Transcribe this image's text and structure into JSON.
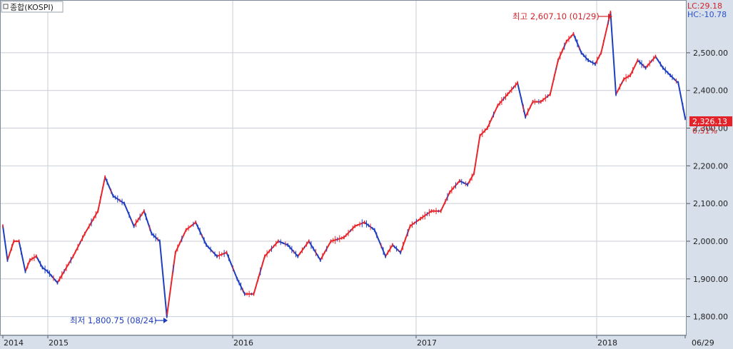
{
  "window": {
    "series_label": "종합(KOSPI)",
    "lc_label": "LC:29.18",
    "hc_label": "HC:-10.78"
  },
  "colors": {
    "up": "#e8262c",
    "down": "#1f3fbf",
    "axis_bg": "#d6dfea",
    "grid": "#c9ced6",
    "frame": "#7f8a98",
    "last_price_bg": "#e2242a"
  },
  "chart_data": {
    "type": "line",
    "style": "candlestick-like daily series (red up / blue down)",
    "series": [
      {
        "x": [
          "2014-07-01",
          "2014-07-20",
          "2014-08-15",
          "2014-09-05",
          "2014-10-01",
          "2014-10-20",
          "2014-11-15",
          "2014-12-10",
          "2014-12-31",
          "2015-01-20",
          "2015-02-20",
          "2015-03-15",
          "2015-04-10",
          "2015-04-24",
          "2015-05-10",
          "2015-06-01",
          "2015-06-20",
          "2015-07-10",
          "2015-07-25",
          "2015-08-10",
          "2015-08-24",
          "2015-09-10",
          "2015-10-01",
          "2015-10-20",
          "2015-11-10",
          "2015-12-01",
          "2015-12-20",
          "2016-01-10",
          "2016-01-25",
          "2016-02-12",
          "2016-03-05",
          "2016-04-01",
          "2016-04-20",
          "2016-05-10",
          "2016-06-01",
          "2016-06-24",
          "2016-07-15",
          "2016-08-10",
          "2016-09-01",
          "2016-09-20",
          "2016-10-10",
          "2016-11-01",
          "2016-11-15",
          "2016-12-01",
          "2016-12-20",
          "2017-01-10",
          "2017-02-01",
          "2017-02-20",
          "2017-03-10",
          "2017-03-30",
          "2017-04-15",
          "2017-04-28",
          "2017-05-10",
          "2017-05-25",
          "2017-06-15",
          "2017-07-05",
          "2017-07-25",
          "2017-08-10",
          "2017-08-25",
          "2017-09-10",
          "2017-09-29",
          "2017-10-15",
          "2017-11-01",
          "2017-11-15",
          "2017-12-01",
          "2017-12-15",
          "2017-12-29",
          "2018-01-10",
          "2018-01-29",
          "2018-02-09",
          "2018-02-25",
          "2018-03-10",
          "2018-03-25",
          "2018-04-10",
          "2018-04-30",
          "2018-05-15",
          "2018-05-30",
          "2018-06-15",
          "2018-06-29"
        ],
        "values": [
          2040,
          1950,
          2000,
          2000,
          1920,
          1950,
          1960,
          1930,
          1920,
          1890,
          1960,
          2020,
          2080,
          2170,
          2120,
          2100,
          2040,
          2080,
          2020,
          2000,
          1800.75,
          1970,
          2030,
          2050,
          1990,
          1960,
          1970,
          1900,
          1860,
          1860,
          1960,
          2000,
          1990,
          1960,
          2000,
          1950,
          2000,
          2010,
          2040,
          2050,
          2030,
          1960,
          1990,
          1970,
          2040,
          2060,
          2080,
          2080,
          2130,
          2160,
          2150,
          2180,
          2280,
          2300,
          2360,
          2390,
          2420,
          2330,
          2370,
          2370,
          2390,
          2480,
          2530,
          2550,
          2500,
          2480,
          2470,
          2500,
          2607.1,
          2390,
          2430,
          2440,
          2480,
          2460,
          2490,
          2460,
          2440,
          2420,
          2326.13
        ]
      }
    ],
    "x_ticks": [
      "2014",
      "2015",
      "2016",
      "2017",
      "2018",
      "06/29"
    ],
    "y_ticks": [
      "1,800.00",
      "1,900.00",
      "2,000.00",
      "2,100.00",
      "2,200.00",
      "2,300.00",
      "2,400.00",
      "2,500.00"
    ],
    "ylim": [
      1750,
      2640
    ],
    "grid": true,
    "annotations": {
      "high": "최고 2,607.10 (01/29)",
      "low": "최저 1,800.75 (08/24)",
      "last_price": "2,326.13",
      "last_change": "0.51%"
    }
  }
}
